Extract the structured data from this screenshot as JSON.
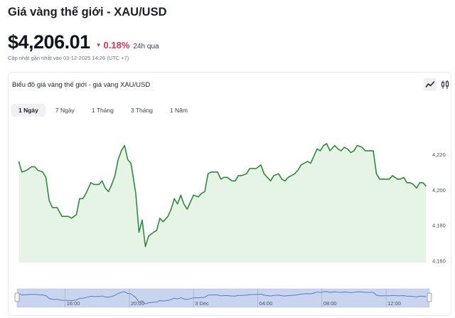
{
  "header": {
    "title": "Giá vàng thế giới - XAU/USD",
    "price": "$4,206.01",
    "change_pct": "0.18%",
    "change_period": "24h qua",
    "change_direction": "down",
    "updated": "Cập nhật gần nhất vào 03-12-2025 14:26 (UTC +7)"
  },
  "card": {
    "title": "Biểu đồ giá vàng thế giới - giá vàng XAU/USD",
    "tools": [
      {
        "icon": "line-chart-icon",
        "active": true
      },
      {
        "icon": "candlestick-icon",
        "active": false
      }
    ],
    "tabs": [
      {
        "label": "1 Ngày",
        "active": true
      },
      {
        "label": "7 Ngày",
        "active": false
      },
      {
        "label": "1 Tháng",
        "active": false
      },
      {
        "label": "3 Tháng",
        "active": false
      },
      {
        "label": "1 Năm",
        "active": false
      }
    ]
  },
  "colors": {
    "line": "#2e8b3a",
    "area_fill": "#e6f4e5",
    "down": "#d4364b",
    "navigator_fill": "#c9d5ef",
    "navigator_line": "#5a7bbf"
  },
  "chart_data": {
    "type": "area",
    "y_ticks": [
      4160,
      4180,
      4200,
      4220
    ],
    "y_tick_labels": [
      "4,160",
      "4,180",
      "4,200",
      "4,220"
    ],
    "ylim": [
      4159,
      4232
    ],
    "x_ticks": [
      {
        "label": "16:00",
        "hour": 16
      },
      {
        "label": "20:00",
        "hour": 20
      },
      {
        "label": "3 Dec",
        "hour": 24
      },
      {
        "label": "04:00",
        "hour": 28
      },
      {
        "label": "08:00",
        "hour": 32
      },
      {
        "label": "12:00",
        "hour": 36
      }
    ],
    "xlim": [
      13,
      38.7
    ],
    "grid": false,
    "series": [
      {
        "x": [
          13.1,
          13.3,
          13.6,
          13.9,
          14.1,
          14.3,
          14.6,
          14.8,
          15.0,
          15.2,
          15.5,
          15.8,
          16.0,
          16.2,
          16.4,
          16.7,
          16.9,
          17.1,
          17.3,
          17.6,
          17.8,
          18.1,
          18.3,
          18.5,
          18.7,
          18.9,
          19.1,
          19.3,
          19.5,
          19.7,
          19.9,
          20.1,
          20.4,
          20.6,
          20.8,
          21.0,
          21.2,
          21.5,
          21.7,
          21.9,
          22.1,
          22.4,
          22.6,
          22.8,
          23.0,
          23.2,
          23.4,
          23.6,
          23.8,
          24.0,
          24.3,
          24.5,
          24.7,
          24.9,
          25.1,
          25.3,
          25.5,
          25.7,
          25.9,
          26.1,
          26.4,
          26.6,
          26.8,
          27.0,
          27.3,
          27.5,
          27.7,
          27.9,
          28.2,
          28.4,
          28.6,
          28.8,
          29.0,
          29.3,
          29.5,
          29.7,
          29.9,
          30.1,
          30.3,
          30.5,
          30.7,
          30.9,
          31.1,
          31.3,
          31.5,
          31.7,
          31.9,
          32.1,
          32.3,
          32.5,
          32.8,
          33.0,
          33.2,
          33.4,
          33.6,
          33.8,
          34.0,
          34.2,
          34.5,
          34.7,
          34.9,
          35.2,
          35.4,
          35.6,
          35.8,
          36.0,
          36.2,
          36.4,
          36.7,
          36.9,
          37.1,
          37.3,
          37.5,
          37.7,
          37.9,
          38.1,
          38.3,
          38.5
        ],
        "y": [
          4216,
          4210,
          4211,
          4213,
          4213,
          4211,
          4210,
          4207,
          4194,
          4190,
          4190,
          4185,
          4185,
          4185,
          4184,
          4186,
          4195,
          4195,
          4198,
          4204,
          4203,
          4203,
          4205,
          4201,
          4199,
          4203,
          4208,
          4217,
          4222,
          4225,
          4217,
          4215,
          4198,
          4176,
          4183,
          4168,
          4174,
          4176,
          4177,
          4184,
          4182,
          4185,
          4189,
          4195,
          4192,
          4197,
          4192,
          4189,
          4193,
          4197,
          4196,
          4198,
          4199,
          4209,
          4210,
          4210,
          4210,
          4206,
          4207,
          4207,
          4205,
          4205,
          4208,
          4208,
          4209,
          4212,
          4212,
          4212,
          4214,
          4209,
          4207,
          4205,
          4208,
          4209,
          4206,
          4205,
          4207,
          4208,
          4209,
          4211,
          4214,
          4215,
          4216,
          4215,
          4219,
          4223,
          4222,
          4225,
          4226,
          4222,
          4225,
          4223,
          4222,
          4224,
          4223,
          4221,
          4222,
          4225,
          4224,
          4222,
          4222,
          4222,
          4209,
          4206,
          4206,
          4206,
          4206,
          4208,
          4206,
          4206,
          4207,
          4204,
          4204,
          4203,
          4201,
          4204,
          4204,
          4202
        ]
      }
    ]
  }
}
